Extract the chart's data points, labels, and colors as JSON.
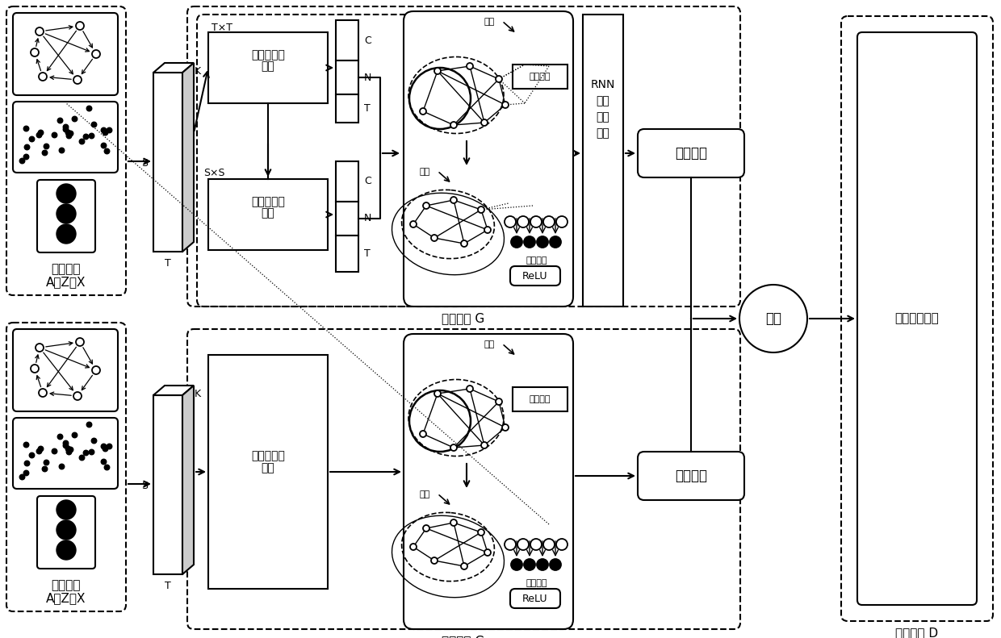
{
  "bg": "#ffffff",
  "top_input_label1": "模型输入",
  "top_input_label2": "A、Z、X",
  "bot_input_label1": "模型输入",
  "bot_input_label2": "A、Z、X",
  "time_attn1": "时间注意力",
  "time_attn2": "变换",
  "space_attn1": "空间注意力",
  "space_attn2": "变换",
  "st_attn1": "时空注意力",
  "st_attn2": "变换",
  "gen_net_G": "生成网络 G",
  "spatial_conv": "空间卷积",
  "temporal_conv": "时间卷积",
  "relu": "ReLU",
  "rnn1": "RNN",
  "rnn2": "循环",
  "rnn3": "神经",
  "rnn4": "网络",
  "global_feat": "全局特征",
  "local_feat": "局部特征",
  "fusion": "融合",
  "feedforward": "前馈神经网络",
  "discriminator": "判别模型 D",
  "txt": "T×T",
  "sxs": "S×S",
  "shi_jian": "时间",
  "C": "C",
  "N": "N",
  "T_lbl": "T",
  "K_lbl": "K",
  "S_lbl": "S"
}
